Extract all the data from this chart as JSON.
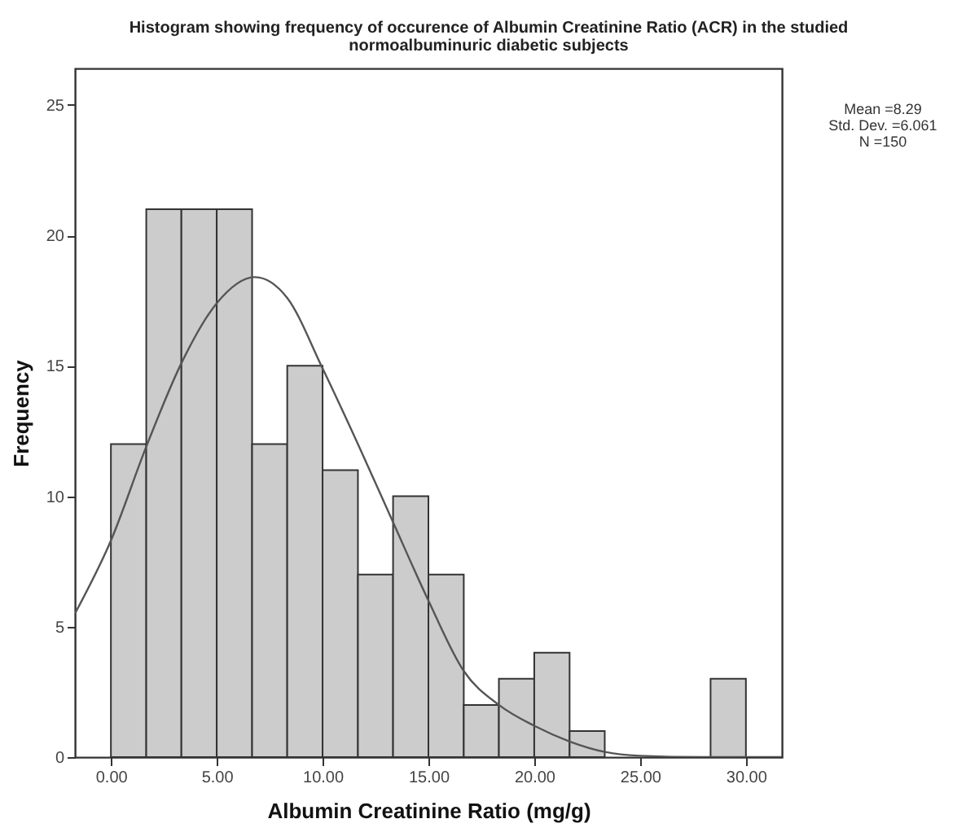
{
  "chart_data": {
    "type": "histogram",
    "title": "Histogram showing frequency of occurence of Albumin Creatinine Ratio (ACR) in the studied normoalbuminuric diabetic subjects",
    "xlabel": "Albumin Creatinine Ratio (mg/g)",
    "ylabel": "Frequency",
    "bins": [
      0,
      1.67,
      3.33,
      5,
      6.67,
      8.33,
      10,
      11.67,
      13.33,
      15,
      16.67,
      18.33,
      20,
      21.67,
      23.33,
      25,
      26.67,
      28.33,
      30
    ],
    "values": [
      12,
      21,
      21,
      21,
      12,
      15,
      11,
      7,
      10,
      7,
      2,
      3,
      4,
      1,
      0,
      0,
      0,
      3
    ],
    "color": "#cccccc",
    "series": [
      {
        "type": "line",
        "color": "#555555",
        "x": [
          -1.7,
          0,
          1.67,
          3.33,
          5,
          6.8,
          8.33,
          10,
          11.67,
          13.33,
          15,
          16.67,
          18.33,
          20,
          21.67,
          23.33,
          25,
          28,
          31.7
        ],
        "values": [
          5.5,
          8.3,
          11.9,
          15.1,
          17.4,
          18.4,
          17.6,
          14.9,
          12,
          9,
          6,
          3.3,
          2,
          1.2,
          0.6,
          0.2,
          0.05,
          0,
          0
        ]
      }
    ],
    "xlim": [
      -1.7,
      31.7
    ],
    "ylim": [
      0,
      26.4
    ],
    "xticks": [
      {
        "value": 0,
        "label": "0.00"
      },
      {
        "value": 5,
        "label": "5.00"
      },
      {
        "value": 10,
        "label": "10.00"
      },
      {
        "value": 15,
        "label": "15.00"
      },
      {
        "value": 20,
        "label": "20.00"
      },
      {
        "value": 25,
        "label": "25.00"
      },
      {
        "value": 30,
        "label": "30.00"
      }
    ],
    "yticks": [
      0,
      5,
      10,
      15,
      20,
      25
    ],
    "annotations": [
      "Mean =8.29",
      "Std. Dev. =6.061",
      "N =150"
    ]
  }
}
